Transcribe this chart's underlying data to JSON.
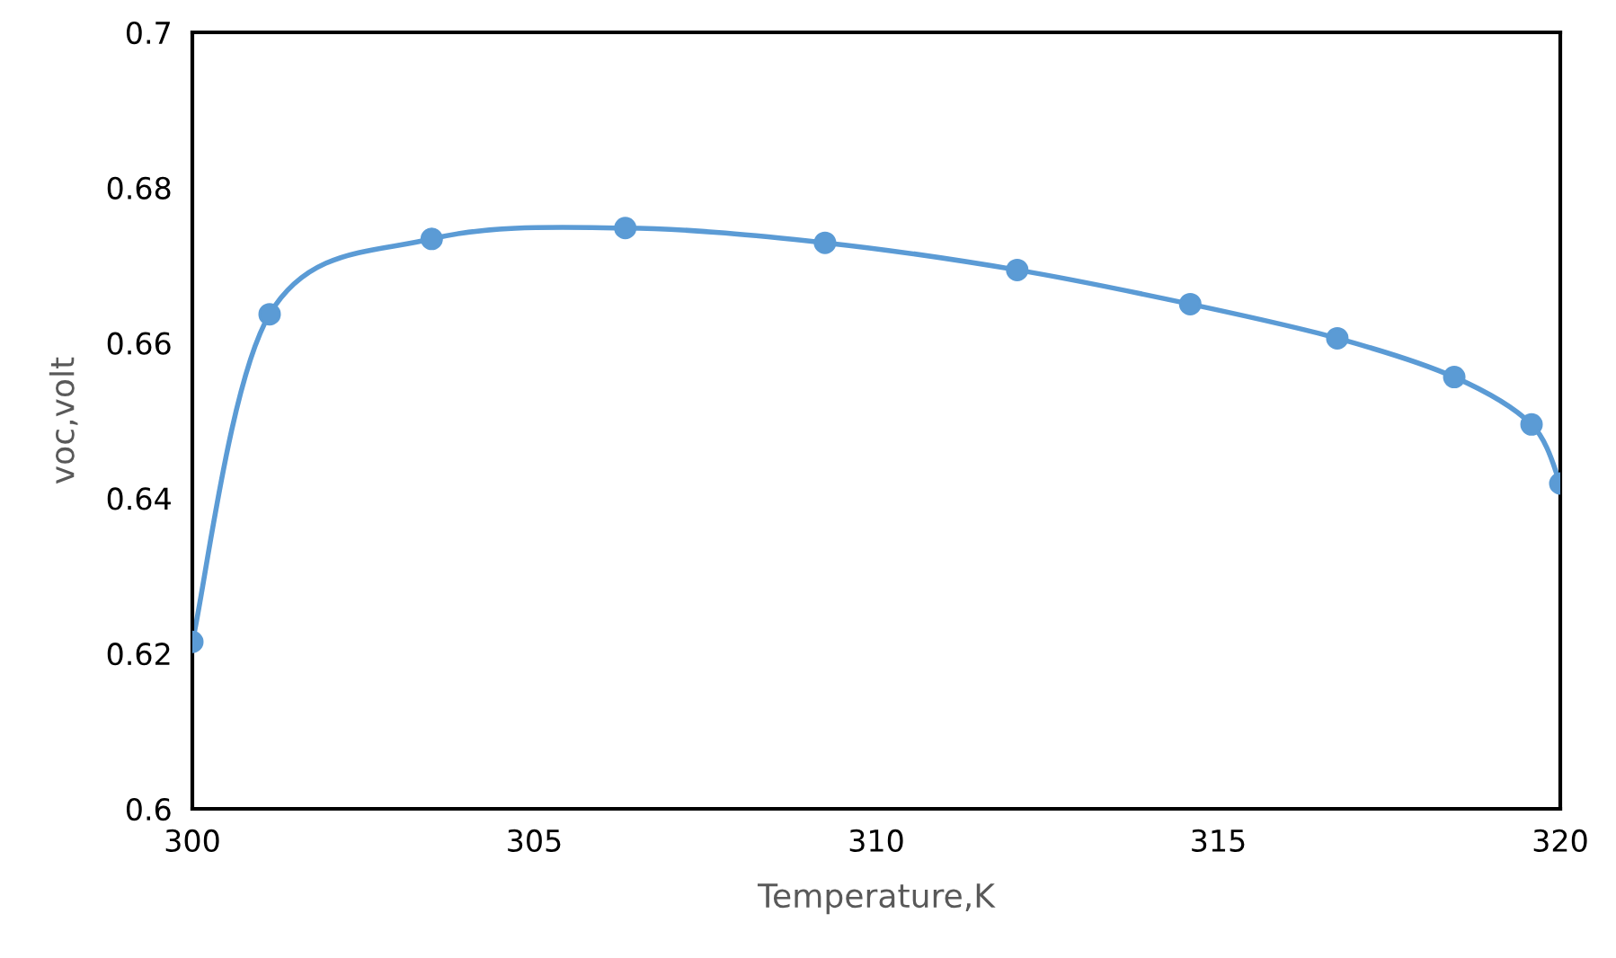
{
  "chart_data": {
    "type": "line",
    "xlabel": "Temperature,K",
    "ylabel": "voc,volt",
    "x": [
      300,
      301.13,
      303.5,
      306.33,
      309.25,
      312.06,
      314.59,
      316.74,
      318.45,
      319.58,
      320
    ],
    "series": [
      {
        "color": "#5b9bd5",
        "values": [
          0.6215,
          0.6637,
          0.6734,
          0.6748,
          0.6729,
          0.6694,
          0.665,
          0.6606,
          0.6556,
          0.6495,
          0.6419
        ]
      }
    ],
    "xlim": [
      300,
      320
    ],
    "xticks": [
      300,
      305,
      310,
      315,
      320
    ],
    "ylim": [
      0.6,
      0.7
    ],
    "yticks": [
      0.6,
      0.62,
      0.64,
      0.66,
      0.68,
      0.7
    ],
    "marker": "circle",
    "line_style": "solid",
    "grid": false,
    "legend": false
  }
}
